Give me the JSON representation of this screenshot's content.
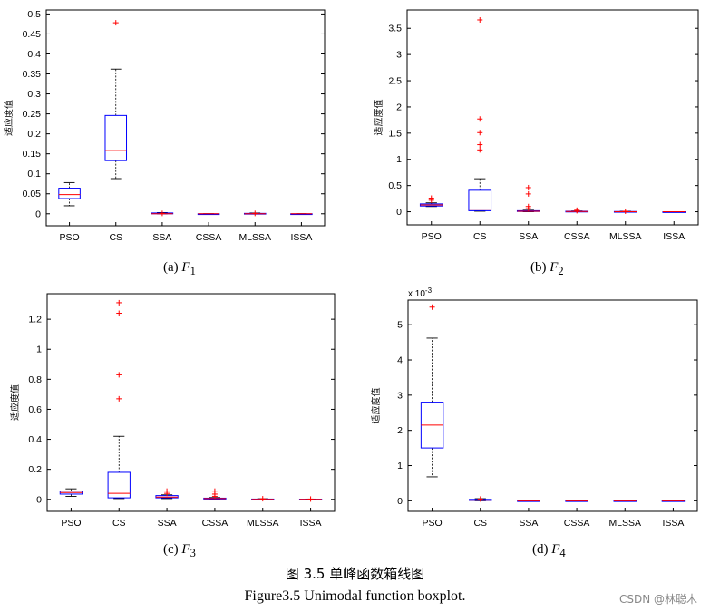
{
  "figure": {
    "title": "图 3.5  单峰函数箱线图",
    "subtitle": "Figure3.5 Unimodal function boxplot.",
    "watermark": "CSDN @林聪木",
    "colors": {
      "box": "#0000ff",
      "median": "#ff0000",
      "outlier": "#ff0000",
      "whisker": "#000000",
      "frame": "#000000",
      "panel_bg": "#ffffff"
    }
  },
  "chart_data": [
    {
      "type": "boxplot",
      "caption_prefix": "(a) ",
      "caption_var": "F",
      "caption_sub": "1",
      "ylabel": "适应度值",
      "exponent_label": "",
      "ylim": [
        -0.03,
        0.51
      ],
      "yticks": [
        "0",
        "0.05",
        "0.1",
        "0.15",
        "0.2",
        "0.25",
        "0.3",
        "0.35",
        "0.4",
        "0.45",
        "0.5"
      ],
      "ytick_values": [
        0,
        0.05,
        0.1,
        0.15,
        0.2,
        0.25,
        0.3,
        0.35,
        0.4,
        0.45,
        0.5
      ],
      "categories": [
        "PSO",
        "CS",
        "SSA",
        "CSSA",
        "MLSSA",
        "ISSA"
      ],
      "boxes": [
        {
          "min": 0.02,
          "q1": 0.038,
          "median": 0.048,
          "q3": 0.064,
          "max": 0.078,
          "outliers": []
        },
        {
          "min": 0.088,
          "q1": 0.133,
          "median": 0.158,
          "q3": 0.246,
          "max": 0.362,
          "outliers": [
            0.478
          ]
        },
        {
          "min": 0,
          "q1": 0,
          "median": 0,
          "q3": 0.002,
          "max": 0.003,
          "outliers": [
            0.001
          ]
        },
        {
          "min": 0,
          "q1": 0,
          "median": 0,
          "q3": 0,
          "max": 0,
          "outliers": []
        },
        {
          "min": 0,
          "q1": 0,
          "median": 0,
          "q3": 0.001,
          "max": 0.002,
          "outliers": [
            0.001
          ]
        },
        {
          "min": 0,
          "q1": 0,
          "median": 0,
          "q3": 0,
          "max": 0,
          "outliers": []
        }
      ]
    },
    {
      "type": "boxplot",
      "caption_prefix": "(b) ",
      "caption_var": "F",
      "caption_sub": "2",
      "ylabel": "适应度值",
      "exponent_label": "",
      "ylim": [
        -0.25,
        3.85
      ],
      "yticks": [
        "0",
        "0.5",
        "1",
        "1.5",
        "2",
        "2.5",
        "3",
        "3.5"
      ],
      "ytick_values": [
        0,
        0.5,
        1,
        1.5,
        2,
        2.5,
        3,
        3.5
      ],
      "categories": [
        "PSO",
        "CS",
        "SSA",
        "CSSA",
        "MLSSA",
        "ISSA"
      ],
      "boxes": [
        {
          "min": 0.1,
          "q1": 0.11,
          "median": 0.13,
          "q3": 0.15,
          "max": 0.17,
          "outliers": [
            0.22,
            0.26
          ]
        },
        {
          "min": 0.01,
          "q1": 0.02,
          "median": 0.05,
          "q3": 0.41,
          "max": 0.63,
          "outliers": [
            1.18,
            1.28,
            1.51,
            1.77,
            3.66
          ]
        },
        {
          "min": 0,
          "q1": 0.005,
          "median": 0.01,
          "q3": 0.02,
          "max": 0.03,
          "outliers": [
            0.06,
            0.1,
            0.34,
            0.46
          ]
        },
        {
          "min": 0,
          "q1": 0,
          "median": 0.005,
          "q3": 0.01,
          "max": 0.015,
          "outliers": [
            0.02,
            0.03
          ]
        },
        {
          "min": 0,
          "q1": 0,
          "median": 0,
          "q3": 0.005,
          "max": 0.01,
          "outliers": [
            0.01
          ]
        },
        {
          "min": 0,
          "q1": 0,
          "median": 0,
          "q3": 0,
          "max": 0,
          "outliers": []
        }
      ]
    },
    {
      "type": "boxplot",
      "caption_prefix": "(c) ",
      "caption_var": "F",
      "caption_sub": "3",
      "ylabel": "适应度值",
      "exponent_label": "",
      "ylim": [
        -0.08,
        1.37
      ],
      "yticks": [
        "0",
        "0.2",
        "0.4",
        "0.6",
        "0.8",
        "1",
        "1.2"
      ],
      "ytick_values": [
        0,
        0.2,
        0.4,
        0.6,
        0.8,
        1,
        1.2
      ],
      "categories": [
        "PSO",
        "CS",
        "SSA",
        "CSSA",
        "MLSSA",
        "ISSA"
      ],
      "boxes": [
        {
          "min": 0.02,
          "q1": 0.035,
          "median": 0.045,
          "q3": 0.055,
          "max": 0.07,
          "outliers": []
        },
        {
          "min": 0.005,
          "q1": 0.01,
          "median": 0.04,
          "q3": 0.18,
          "max": 0.42,
          "outliers": [
            0.67,
            0.83,
            1.24,
            1.31
          ]
        },
        {
          "min": 0.005,
          "q1": 0.01,
          "median": 0.015,
          "q3": 0.025,
          "max": 0.03,
          "outliers": [
            0.04,
            0.055
          ]
        },
        {
          "min": 0,
          "q1": 0.002,
          "median": 0.005,
          "q3": 0.008,
          "max": 0.012,
          "outliers": [
            0.02,
            0.035,
            0.055
          ]
        },
        {
          "min": 0,
          "q1": 0,
          "median": 0,
          "q3": 0.002,
          "max": 0.004,
          "outliers": [
            0.004
          ]
        },
        {
          "min": 0,
          "q1": 0,
          "median": 0,
          "q3": 0.001,
          "max": 0.002,
          "outliers": [
            0.002
          ]
        }
      ]
    },
    {
      "type": "boxplot",
      "caption_prefix": "(d) ",
      "caption_var": "F",
      "caption_sub": "4",
      "ylabel": "适应度值",
      "exponent_label": "x 10",
      "exponent_power": "-3",
      "ylim": [
        -0.3,
        5.7
      ],
      "yticks": [
        "0",
        "1",
        "2",
        "3",
        "4",
        "5"
      ],
      "ytick_values": [
        0,
        1,
        2,
        3,
        4,
        5
      ],
      "categories": [
        "PSO",
        "CS",
        "SSA",
        "CSSA",
        "MLSSA",
        "ISSA"
      ],
      "boxes": [
        {
          "min": 0.68,
          "q1": 1.5,
          "median": 2.15,
          "q3": 2.8,
          "max": 4.62,
          "outliers": [
            5.5
          ]
        },
        {
          "min": 0,
          "q1": 0.01,
          "median": 0.02,
          "q3": 0.04,
          "max": 0.06,
          "outliers": [
            0.05
          ]
        },
        {
          "min": 0,
          "q1": 0,
          "median": 0,
          "q3": 0,
          "max": 0,
          "outliers": []
        },
        {
          "min": 0,
          "q1": 0,
          "median": 0,
          "q3": 0,
          "max": 0,
          "outliers": []
        },
        {
          "min": 0,
          "q1": 0,
          "median": 0,
          "q3": 0,
          "max": 0,
          "outliers": []
        },
        {
          "min": 0,
          "q1": 0,
          "median": 0,
          "q3": 0,
          "max": 0,
          "outliers": []
        }
      ]
    }
  ]
}
